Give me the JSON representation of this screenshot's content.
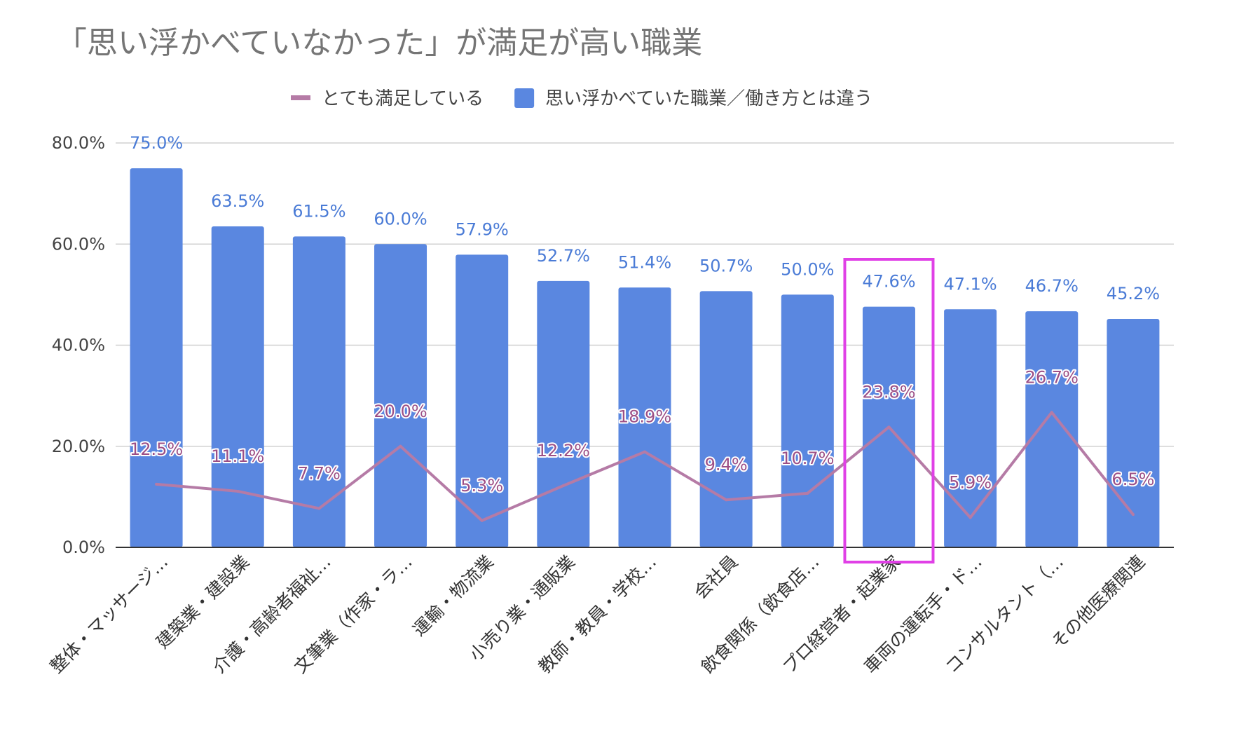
{
  "chart_data": {
    "type": "bar",
    "title": "「思い浮かべていなかった」が満足が高い職業",
    "categories": [
      "整体・マッサージ…",
      "建築業・建設業",
      "介護・高齢者福祉…",
      "文筆業（作家・ラ…",
      "運輸・物流業",
      "小売り業・通販業",
      "教師・教員・学校…",
      "会社員",
      "飲食関係（飲食店…",
      "プロ経営者・起業家",
      "車両の運転手・ド…",
      "コンサルタント（…",
      "その他医療関連"
    ],
    "series": [
      {
        "name": "思い浮かべていた職業／働き方とは違う",
        "kind": "bar",
        "color": "#5a87e0",
        "values": [
          75.0,
          63.5,
          61.5,
          60.0,
          57.9,
          52.7,
          51.4,
          50.7,
          50.0,
          47.6,
          47.1,
          46.7,
          45.2
        ],
        "labels": [
          "75.0%",
          "63.5%",
          "61.5%",
          "60.0%",
          "57.9%",
          "52.7%",
          "51.4%",
          "50.7%",
          "50.0%",
          "47.6%",
          "47.1%",
          "46.7%",
          "45.2%"
        ]
      },
      {
        "name": "とても満足している",
        "kind": "line",
        "color": "#b57ba6",
        "values": [
          12.5,
          11.1,
          7.7,
          20.0,
          5.3,
          12.2,
          18.9,
          9.4,
          10.7,
          23.8,
          5.9,
          26.7,
          6.5
        ],
        "labels": [
          "12.5%",
          "11.1%",
          "7.7%",
          "20.0%",
          "5.3%",
          "12.2%",
          "18.9%",
          "9.4%",
          "10.7%",
          "23.8%",
          "5.9%",
          "26.7%",
          "6.5%"
        ]
      }
    ],
    "legend_order": [
      "とても満足している",
      "思い浮かべていた職業／働き方とは違う"
    ],
    "y_ticks": [
      "0.0%",
      "20.0%",
      "40.0%",
      "60.0%",
      "80.0%"
    ],
    "y_tick_values": [
      0,
      20,
      40,
      60,
      80
    ],
    "ylim": [
      0,
      80
    ],
    "xlabel": "",
    "ylabel": "",
    "grid": true,
    "legend_position": "top-center",
    "highlight": {
      "category_index": 9,
      "color": "#e040e6"
    }
  }
}
